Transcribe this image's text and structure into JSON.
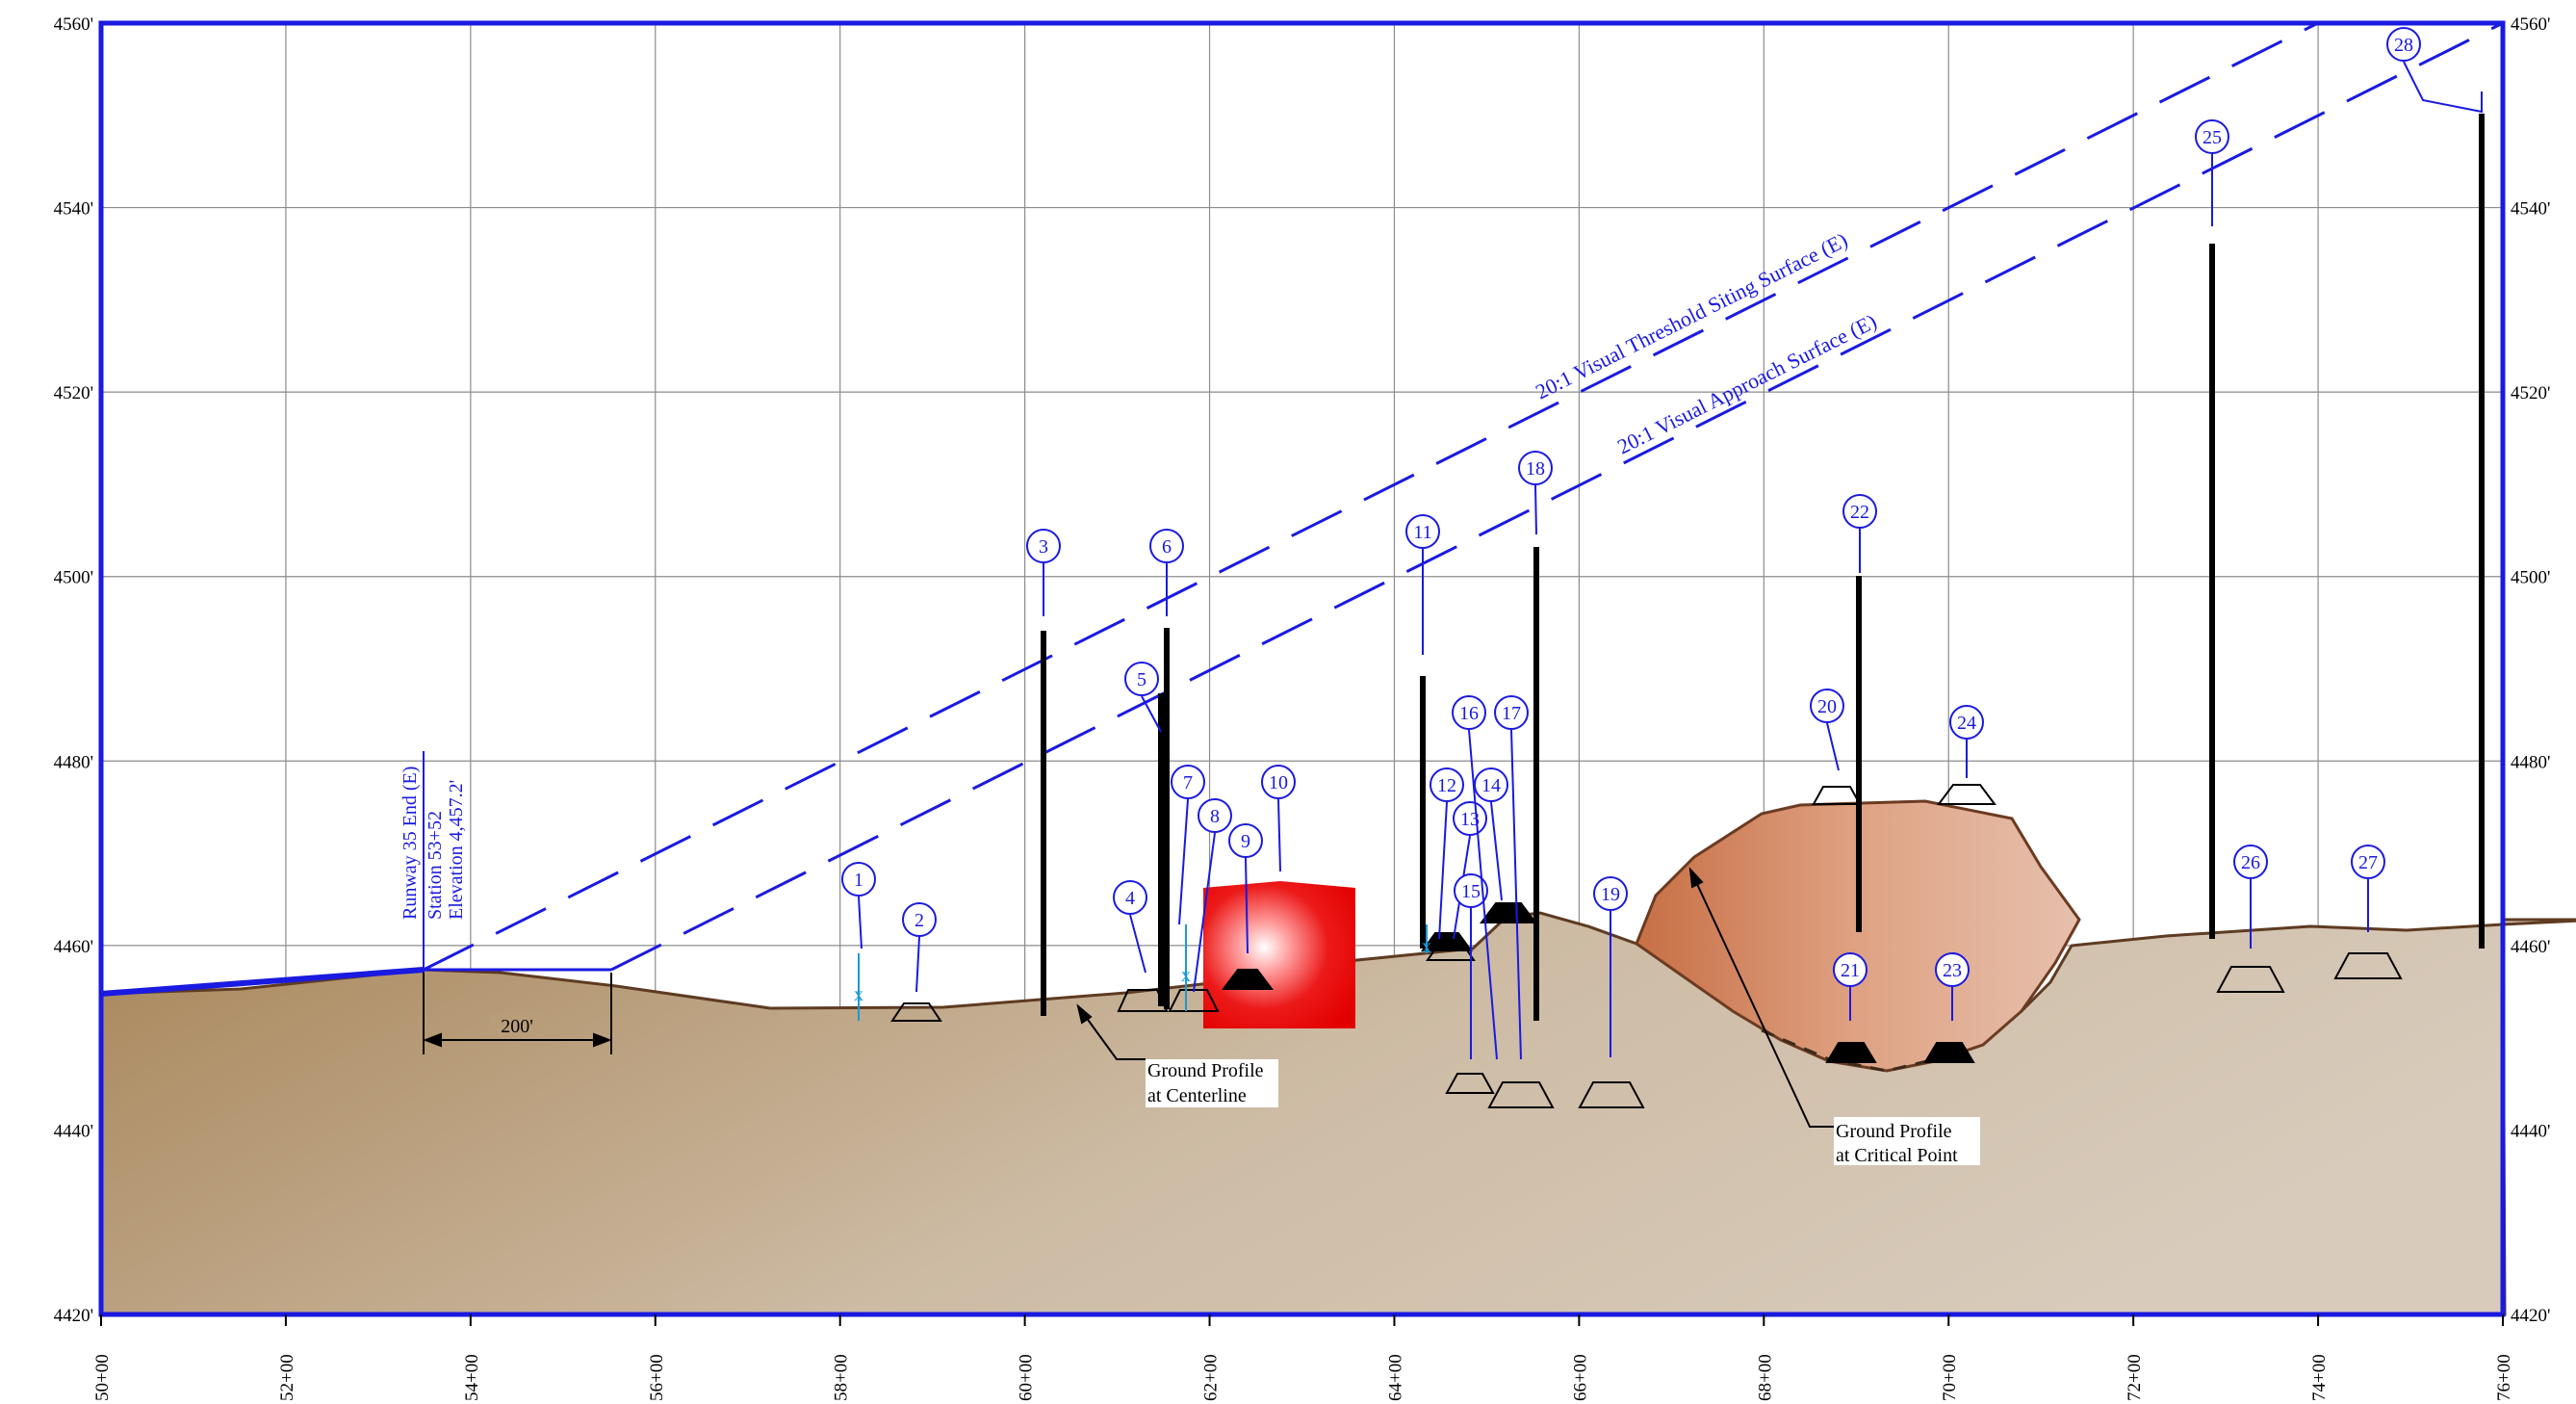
{
  "x_axis": {
    "stations": [
      "50+00",
      "52+00",
      "54+00",
      "56+00",
      "58+00",
      "60+00",
      "62+00",
      "64+00",
      "66+00",
      "68+00",
      "70+00",
      "72+00",
      "74+00",
      "76+00"
    ]
  },
  "y_axis": {
    "left_labels": [
      "4560'",
      "4540'",
      "4520'",
      "4500'",
      "4480'",
      "4460'",
      "4440'",
      "4420'"
    ],
    "right_labels": [
      "4560'",
      "4540'",
      "4520'",
      "4500'",
      "4480'",
      "4460'",
      "4440'",
      "4420'"
    ]
  },
  "surfaces": {
    "threshold": "20:1 Visual Threshold Siting Surface (E)",
    "approach": "20:1 Visual Approach Surface (E)"
  },
  "runway_end": {
    "line1": "Runway 35 End (E)",
    "line2": "Station 53+52",
    "line3": "Elevation 4,457.2'"
  },
  "offset_dimension": "200'",
  "callouts": {
    "centerline_line1": "Ground Profile",
    "centerline_line2": "at Centerline",
    "critical_line1": "Ground Profile",
    "critical_line2": "at Critical Point"
  },
  "obstructions": [
    {
      "id": "1"
    },
    {
      "id": "2"
    },
    {
      "id": "3"
    },
    {
      "id": "4"
    },
    {
      "id": "5"
    },
    {
      "id": "6"
    },
    {
      "id": "7"
    },
    {
      "id": "8"
    },
    {
      "id": "9"
    },
    {
      "id": "10"
    },
    {
      "id": "11"
    },
    {
      "id": "12"
    },
    {
      "id": "13"
    },
    {
      "id": "14"
    },
    {
      "id": "15"
    },
    {
      "id": "16"
    },
    {
      "id": "17"
    },
    {
      "id": "18"
    },
    {
      "id": "19"
    },
    {
      "id": "20"
    },
    {
      "id": "21"
    },
    {
      "id": "22"
    },
    {
      "id": "23"
    },
    {
      "id": "24"
    },
    {
      "id": "25"
    },
    {
      "id": "26"
    },
    {
      "id": "27"
    },
    {
      "id": "28"
    }
  ],
  "colors": {
    "frame": "#1a1ae0",
    "annotation": "#1a1ae0",
    "ground_dark": "#a8865a",
    "ground_light": "#d8cbbb",
    "mound": "#d99a78",
    "building": "#e8000a",
    "pole": "#000000",
    "grid": "#8c8c8c"
  }
}
